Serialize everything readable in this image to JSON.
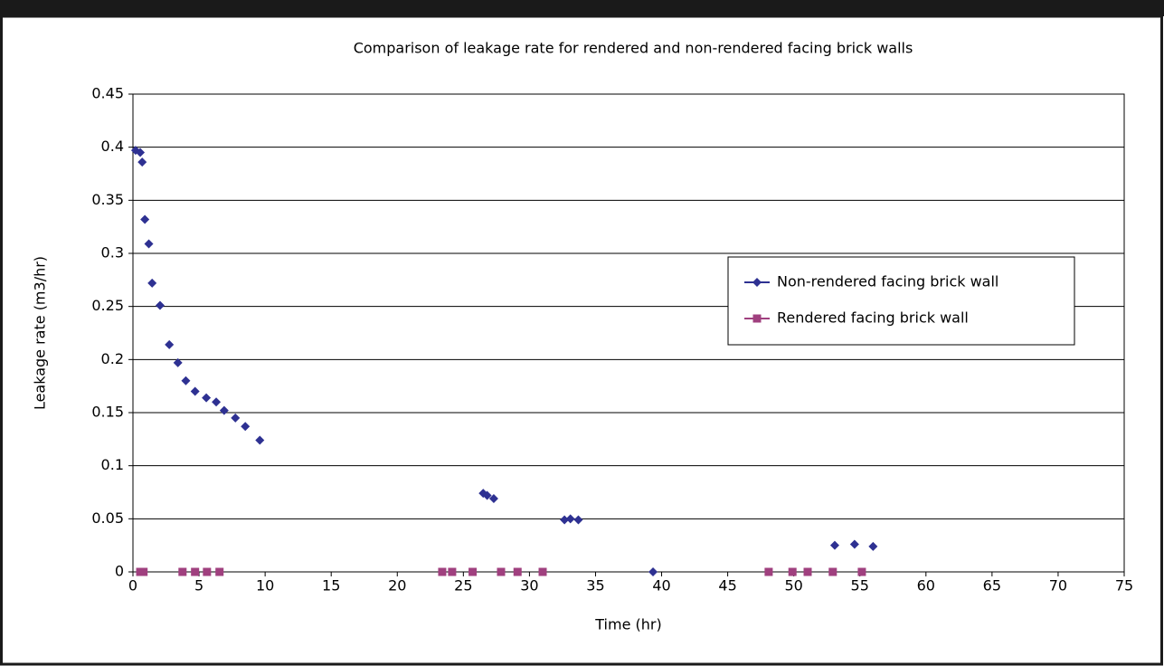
{
  "chart_data": {
    "type": "scatter",
    "title": "Comparison of leakage rate for rendered and non-rendered facing brick walls",
    "x_label": "Time (hr)",
    "y_label": "Leakage rate (m3/hr)",
    "xlim": [
      0,
      75
    ],
    "xticks": [
      0,
      5,
      10,
      15,
      20,
      25,
      30,
      35,
      40,
      45,
      50,
      55,
      60,
      65,
      70,
      75
    ],
    "ylim": [
      0,
      0.45
    ],
    "yticks": [
      0,
      0.05,
      0.1,
      0.15,
      0.2,
      0.25,
      0.3,
      0.35,
      0.4,
      0.45
    ],
    "grid": true,
    "legend": "right",
    "series": [
      {
        "name": "Non-rendered facing brick wall",
        "color": "#2e3192",
        "marker": "diamond",
        "x": [
          0.2,
          0.55,
          0.7,
          0.9,
          1.2,
          1.45,
          2.05,
          2.75,
          3.4,
          4.0,
          4.7,
          5.55,
          6.3,
          6.9,
          7.75,
          8.5,
          9.6,
          26.5,
          26.8,
          27.3,
          32.65,
          33.1,
          33.7,
          39.35,
          53.1,
          54.6,
          56.0
        ],
        "values": [
          0.397,
          0.395,
          0.386,
          0.332,
          0.309,
          0.272,
          0.251,
          0.214,
          0.197,
          0.18,
          0.17,
          0.164,
          0.16,
          0.152,
          0.145,
          0.137,
          0.124,
          0.074,
          0.072,
          0.069,
          0.049,
          0.05,
          0.049,
          0,
          0.025,
          0.026,
          0.024
        ]
      },
      {
        "name": "Rendered facing brick wall",
        "color": "#a0407f",
        "marker": "square",
        "x": [
          0.55,
          0.8,
          3.75,
          4.7,
          5.6,
          6.55,
          23.4,
          24.15,
          25.7,
          27.85,
          29.1,
          31.0,
          48.1,
          49.9,
          51.05,
          52.95,
          55.15
        ],
        "values": [
          0,
          0,
          0,
          0,
          0,
          0,
          0,
          0,
          0,
          0,
          0,
          0,
          0,
          0,
          0,
          0,
          0
        ]
      }
    ]
  }
}
